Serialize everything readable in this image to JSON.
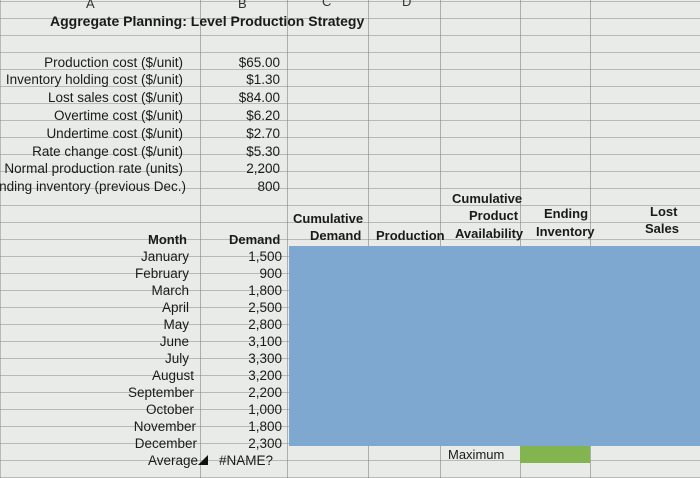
{
  "columns": {
    "a": "A",
    "b": "B",
    "c": "C",
    "d": "D"
  },
  "title": "Aggregate Planning:  Level Production Strategy",
  "params": [
    {
      "label": "Production cost ($/unit)",
      "value": "$65.00"
    },
    {
      "label": "Inventory holding cost ($/unit)",
      "value": "$1.30"
    },
    {
      "label": "Lost sales cost ($/unit)",
      "value": "$84.00"
    },
    {
      "label": "Overtime cost ($/unit)",
      "value": "$6.20"
    },
    {
      "label": "Undertime cost ($/unit)",
      "value": "$2.70"
    },
    {
      "label": "Rate change cost ($/unit)",
      "value": "$5.30"
    },
    {
      "label": "Normal production rate (units)",
      "value": "2,200"
    },
    {
      "label": "Ending inventory (previous Dec.)",
      "value": "800"
    }
  ],
  "table": {
    "month_header": "Month",
    "demand_header": "Demand",
    "cum_demand_header": [
      "Cumulative",
      "Demand"
    ],
    "production_header": "Production",
    "cum_prod_header": [
      "Cumulative",
      "Product",
      "Availability"
    ],
    "ending_inv_header": [
      "Ending",
      "Inventory"
    ],
    "lost_sales_header": [
      "Lost",
      "Sales"
    ],
    "rows": [
      {
        "month": "January",
        "demand": "1,500"
      },
      {
        "month": "February",
        "demand": "900"
      },
      {
        "month": "March",
        "demand": "1,800"
      },
      {
        "month": "April",
        "demand": "2,500"
      },
      {
        "month": "May",
        "demand": "2,800"
      },
      {
        "month": "June",
        "demand": "3,100"
      },
      {
        "month": "July",
        "demand": "3,300"
      },
      {
        "month": "August",
        "demand": "3,200"
      },
      {
        "month": "September",
        "demand": "2,200"
      },
      {
        "month": "October",
        "demand": "1,000"
      },
      {
        "month": "November",
        "demand": "1,800"
      },
      {
        "month": "December",
        "demand": "2,300"
      }
    ],
    "average_label": "Average",
    "average_value": "#NAME?",
    "maximum_label": "Maximum"
  },
  "colors": {
    "blue_fill": "#7ea8cf",
    "green_fill": "#82b550",
    "sheet_bg": "#e9ebe8"
  }
}
